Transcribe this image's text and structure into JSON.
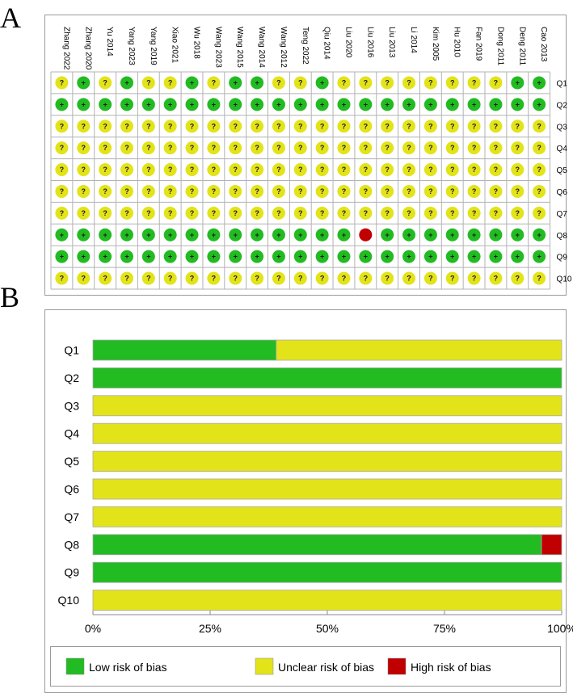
{
  "panel_a_letter": "A",
  "panel_b_letter": "B",
  "colors": {
    "low": "#22bb22",
    "unclear": "#e3e31a",
    "high": "#c00000",
    "grid": "#b3b3b3"
  },
  "symbols": {
    "low": "+",
    "unclear": "?",
    "high": ""
  },
  "chart_data": [
    {
      "type": "table",
      "studies": [
        "Zhang 2022",
        "Zhang 2020",
        "Yu 2014",
        "Yang 2023",
        "Yang 2019",
        "Xiao 2021",
        "Wu 2018",
        "Wang 2023",
        "Wang 2015",
        "Wang 2014",
        "Wang 2012",
        "Teng 2022",
        "Qiu 2014",
        "Liu 2020",
        "Liu 2016",
        "Liu 2013",
        "Li 2014",
        "Kim 2005",
        "Hu 2010",
        "Fan 2019",
        "Dong 2011",
        "Deng 2011",
        "Cao 2013"
      ],
      "questions": [
        "Q1",
        "Q2",
        "Q3",
        "Q4",
        "Q5",
        "Q6",
        "Q7",
        "Q8",
        "Q9",
        "Q10"
      ],
      "judgements": [
        [
          "U",
          "L",
          "U",
          "L",
          "U",
          "U",
          "L",
          "U",
          "L",
          "L",
          "U",
          "U",
          "L",
          "U",
          "U",
          "U",
          "U",
          "U",
          "U",
          "U",
          "U",
          "L",
          "L"
        ],
        [
          "L",
          "L",
          "L",
          "L",
          "L",
          "L",
          "L",
          "L",
          "L",
          "L",
          "L",
          "L",
          "L",
          "L",
          "L",
          "L",
          "L",
          "L",
          "L",
          "L",
          "L",
          "L",
          "L"
        ],
        [
          "U",
          "U",
          "U",
          "U",
          "U",
          "U",
          "U",
          "U",
          "U",
          "U",
          "U",
          "U",
          "U",
          "U",
          "U",
          "U",
          "U",
          "U",
          "U",
          "U",
          "U",
          "U",
          "U"
        ],
        [
          "U",
          "U",
          "U",
          "U",
          "U",
          "U",
          "U",
          "U",
          "U",
          "U",
          "U",
          "U",
          "U",
          "U",
          "U",
          "U",
          "U",
          "U",
          "U",
          "U",
          "U",
          "U",
          "U"
        ],
        [
          "U",
          "U",
          "U",
          "U",
          "U",
          "U",
          "U",
          "U",
          "U",
          "U",
          "U",
          "U",
          "U",
          "U",
          "U",
          "U",
          "U",
          "U",
          "U",
          "U",
          "U",
          "U",
          "U"
        ],
        [
          "U",
          "U",
          "U",
          "U",
          "U",
          "U",
          "U",
          "U",
          "U",
          "U",
          "U",
          "U",
          "U",
          "U",
          "U",
          "U",
          "U",
          "U",
          "U",
          "U",
          "U",
          "U",
          "U"
        ],
        [
          "U",
          "U",
          "U",
          "U",
          "U",
          "U",
          "U",
          "U",
          "U",
          "U",
          "U",
          "U",
          "U",
          "U",
          "U",
          "U",
          "U",
          "U",
          "U",
          "U",
          "U",
          "U",
          "U"
        ],
        [
          "L",
          "L",
          "L",
          "L",
          "L",
          "L",
          "L",
          "L",
          "L",
          "L",
          "L",
          "L",
          "L",
          "L",
          "H",
          "L",
          "L",
          "L",
          "L",
          "L",
          "L",
          "L",
          "L"
        ],
        [
          "L",
          "L",
          "L",
          "L",
          "L",
          "L",
          "L",
          "L",
          "L",
          "L",
          "L",
          "L",
          "L",
          "L",
          "L",
          "L",
          "L",
          "L",
          "L",
          "L",
          "L",
          "L",
          "L"
        ],
        [
          "U",
          "U",
          "U",
          "U",
          "U",
          "U",
          "U",
          "U",
          "U",
          "U",
          "U",
          "U",
          "U",
          "U",
          "U",
          "U",
          "U",
          "U",
          "U",
          "U",
          "U",
          "U",
          "U"
        ]
      ]
    },
    {
      "type": "bar",
      "stacked": true,
      "orientation": "horizontal",
      "categories": [
        "Q1",
        "Q2",
        "Q3",
        "Q4",
        "Q5",
        "Q6",
        "Q7",
        "Q8",
        "Q9",
        "Q10"
      ],
      "series": [
        {
          "name": "Low risk of bias",
          "values": [
            39.1,
            100,
            0,
            0,
            0,
            0,
            0,
            95.7,
            100,
            0
          ]
        },
        {
          "name": "Unclear risk of bias",
          "values": [
            60.9,
            0,
            100,
            100,
            100,
            100,
            100,
            0,
            0,
            100
          ]
        },
        {
          "name": "High risk of bias",
          "values": [
            0,
            0,
            0,
            0,
            0,
            0,
            0,
            4.3,
            0,
            0
          ]
        }
      ],
      "xlim": [
        0,
        100
      ],
      "xticks": [
        "0%",
        "25%",
        "50%",
        "75%",
        "100%"
      ],
      "legend_position": "bottom"
    }
  ]
}
